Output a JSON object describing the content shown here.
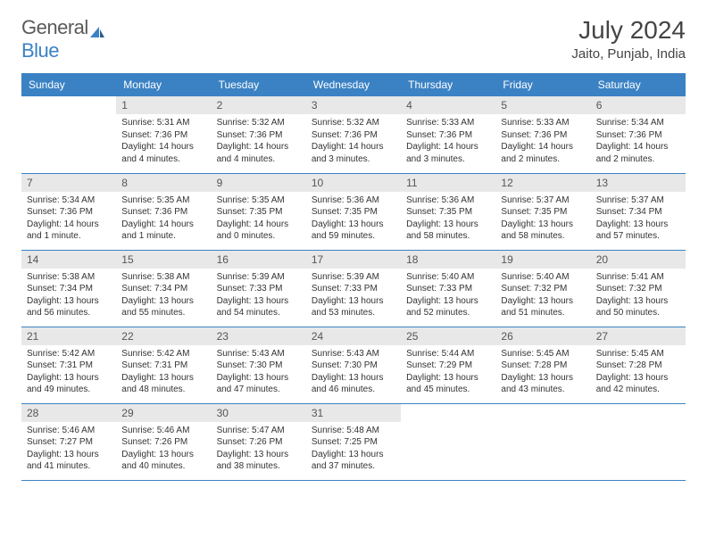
{
  "brand": {
    "part1": "General",
    "part2": "Blue"
  },
  "title": "July 2024",
  "subtitle": "Jaito, Punjab, India",
  "colors": {
    "header_bg": "#3b82c4",
    "header_text": "#ffffff",
    "daynum_bg": "#e8e8e8",
    "row_border": "#3b82c4",
    "logo_gray": "#5a5a5a",
    "logo_blue": "#3b82c4"
  },
  "weekdays": [
    "Sunday",
    "Monday",
    "Tuesday",
    "Wednesday",
    "Thursday",
    "Friday",
    "Saturday"
  ],
  "first_weekday_index": 1,
  "days": [
    {
      "n": 1,
      "sunrise": "5:31 AM",
      "sunset": "7:36 PM",
      "daylight": "14 hours and 4 minutes."
    },
    {
      "n": 2,
      "sunrise": "5:32 AM",
      "sunset": "7:36 PM",
      "daylight": "14 hours and 4 minutes."
    },
    {
      "n": 3,
      "sunrise": "5:32 AM",
      "sunset": "7:36 PM",
      "daylight": "14 hours and 3 minutes."
    },
    {
      "n": 4,
      "sunrise": "5:33 AM",
      "sunset": "7:36 PM",
      "daylight": "14 hours and 3 minutes."
    },
    {
      "n": 5,
      "sunrise": "5:33 AM",
      "sunset": "7:36 PM",
      "daylight": "14 hours and 2 minutes."
    },
    {
      "n": 6,
      "sunrise": "5:34 AM",
      "sunset": "7:36 PM",
      "daylight": "14 hours and 2 minutes."
    },
    {
      "n": 7,
      "sunrise": "5:34 AM",
      "sunset": "7:36 PM",
      "daylight": "14 hours and 1 minute."
    },
    {
      "n": 8,
      "sunrise": "5:35 AM",
      "sunset": "7:36 PM",
      "daylight": "14 hours and 1 minute."
    },
    {
      "n": 9,
      "sunrise": "5:35 AM",
      "sunset": "7:35 PM",
      "daylight": "14 hours and 0 minutes."
    },
    {
      "n": 10,
      "sunrise": "5:36 AM",
      "sunset": "7:35 PM",
      "daylight": "13 hours and 59 minutes."
    },
    {
      "n": 11,
      "sunrise": "5:36 AM",
      "sunset": "7:35 PM",
      "daylight": "13 hours and 58 minutes."
    },
    {
      "n": 12,
      "sunrise": "5:37 AM",
      "sunset": "7:35 PM",
      "daylight": "13 hours and 58 minutes."
    },
    {
      "n": 13,
      "sunrise": "5:37 AM",
      "sunset": "7:34 PM",
      "daylight": "13 hours and 57 minutes."
    },
    {
      "n": 14,
      "sunrise": "5:38 AM",
      "sunset": "7:34 PM",
      "daylight": "13 hours and 56 minutes."
    },
    {
      "n": 15,
      "sunrise": "5:38 AM",
      "sunset": "7:34 PM",
      "daylight": "13 hours and 55 minutes."
    },
    {
      "n": 16,
      "sunrise": "5:39 AM",
      "sunset": "7:33 PM",
      "daylight": "13 hours and 54 minutes."
    },
    {
      "n": 17,
      "sunrise": "5:39 AM",
      "sunset": "7:33 PM",
      "daylight": "13 hours and 53 minutes."
    },
    {
      "n": 18,
      "sunrise": "5:40 AM",
      "sunset": "7:33 PM",
      "daylight": "13 hours and 52 minutes."
    },
    {
      "n": 19,
      "sunrise": "5:40 AM",
      "sunset": "7:32 PM",
      "daylight": "13 hours and 51 minutes."
    },
    {
      "n": 20,
      "sunrise": "5:41 AM",
      "sunset": "7:32 PM",
      "daylight": "13 hours and 50 minutes."
    },
    {
      "n": 21,
      "sunrise": "5:42 AM",
      "sunset": "7:31 PM",
      "daylight": "13 hours and 49 minutes."
    },
    {
      "n": 22,
      "sunrise": "5:42 AM",
      "sunset": "7:31 PM",
      "daylight": "13 hours and 48 minutes."
    },
    {
      "n": 23,
      "sunrise": "5:43 AM",
      "sunset": "7:30 PM",
      "daylight": "13 hours and 47 minutes."
    },
    {
      "n": 24,
      "sunrise": "5:43 AM",
      "sunset": "7:30 PM",
      "daylight": "13 hours and 46 minutes."
    },
    {
      "n": 25,
      "sunrise": "5:44 AM",
      "sunset": "7:29 PM",
      "daylight": "13 hours and 45 minutes."
    },
    {
      "n": 26,
      "sunrise": "5:45 AM",
      "sunset": "7:28 PM",
      "daylight": "13 hours and 43 minutes."
    },
    {
      "n": 27,
      "sunrise": "5:45 AM",
      "sunset": "7:28 PM",
      "daylight": "13 hours and 42 minutes."
    },
    {
      "n": 28,
      "sunrise": "5:46 AM",
      "sunset": "7:27 PM",
      "daylight": "13 hours and 41 minutes."
    },
    {
      "n": 29,
      "sunrise": "5:46 AM",
      "sunset": "7:26 PM",
      "daylight": "13 hours and 40 minutes."
    },
    {
      "n": 30,
      "sunrise": "5:47 AM",
      "sunset": "7:26 PM",
      "daylight": "13 hours and 38 minutes."
    },
    {
      "n": 31,
      "sunrise": "5:48 AM",
      "sunset": "7:25 PM",
      "daylight": "13 hours and 37 minutes."
    }
  ]
}
